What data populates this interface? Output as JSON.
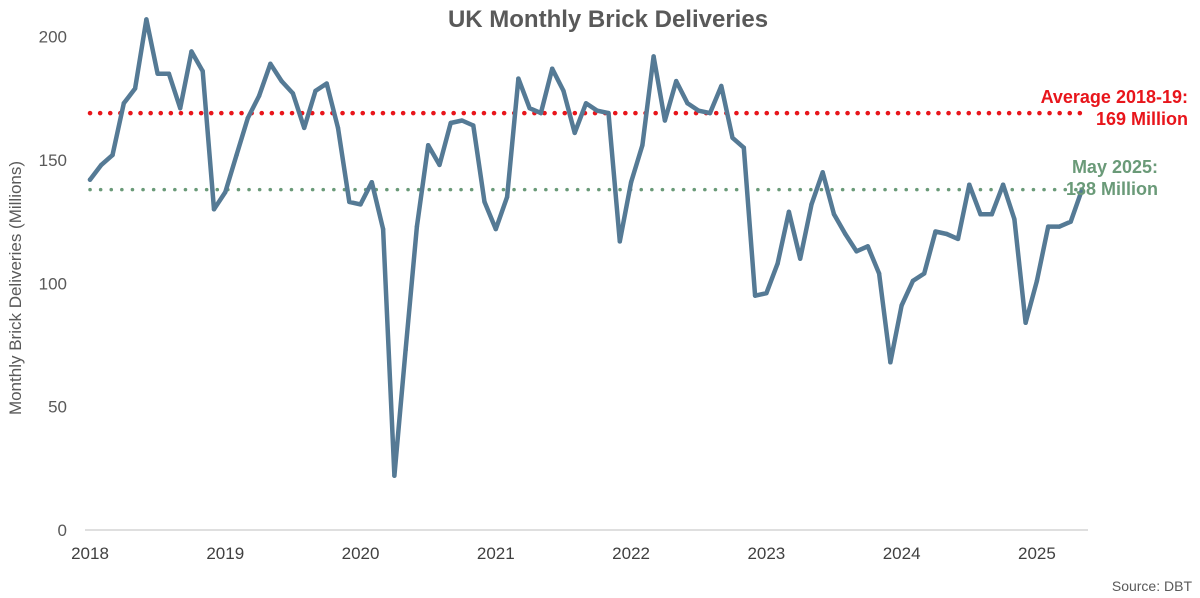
{
  "chart_data": {
    "type": "line",
    "title": "UK Monthly Brick Deliveries",
    "ylabel": "Monthly Brick Deliveries (Millions)",
    "xlabel": "",
    "ylim": [
      0,
      210
    ],
    "yticks": [
      0,
      50,
      100,
      150,
      200
    ],
    "xticks": [
      "2018",
      "2019",
      "2020",
      "2021",
      "2022",
      "2023",
      "2024",
      "2025"
    ],
    "x_start": "2018-01",
    "x_end": "2025-05",
    "grid": false,
    "series": [
      {
        "color": "#557A95",
        "values": [
          142,
          148,
          152,
          173,
          179,
          207,
          185,
          185,
          171,
          194,
          186,
          130,
          137,
          152,
          167,
          176,
          189,
          182,
          177,
          163,
          178,
          181,
          163,
          133,
          132,
          141,
          122,
          22,
          73,
          123,
          156,
          148,
          165,
          166,
          164,
          133,
          122,
          135,
          183,
          171,
          169,
          187,
          178,
          161,
          173,
          170,
          169,
          117,
          141,
          156,
          192,
          166,
          182,
          173,
          170,
          169,
          180,
          159,
          155,
          95,
          96,
          108,
          129,
          110,
          132,
          145,
          128,
          120,
          113,
          115,
          104,
          68,
          91,
          101,
          104,
          121,
          120,
          118,
          140,
          128,
          128,
          140,
          126,
          84,
          101,
          123,
          123,
          125,
          138
        ]
      }
    ],
    "reference_lines": [
      {
        "value": 169,
        "color": "#E8151B",
        "style": "dotted",
        "label_line1": "Average 2018-19:",
        "label_line2": "169 Million"
      },
      {
        "value": 138,
        "color": "#6A9A78",
        "style": "dotted",
        "label_line1": "May 2025:",
        "label_line2": "138 Million"
      }
    ]
  },
  "source": "Source: DBT"
}
